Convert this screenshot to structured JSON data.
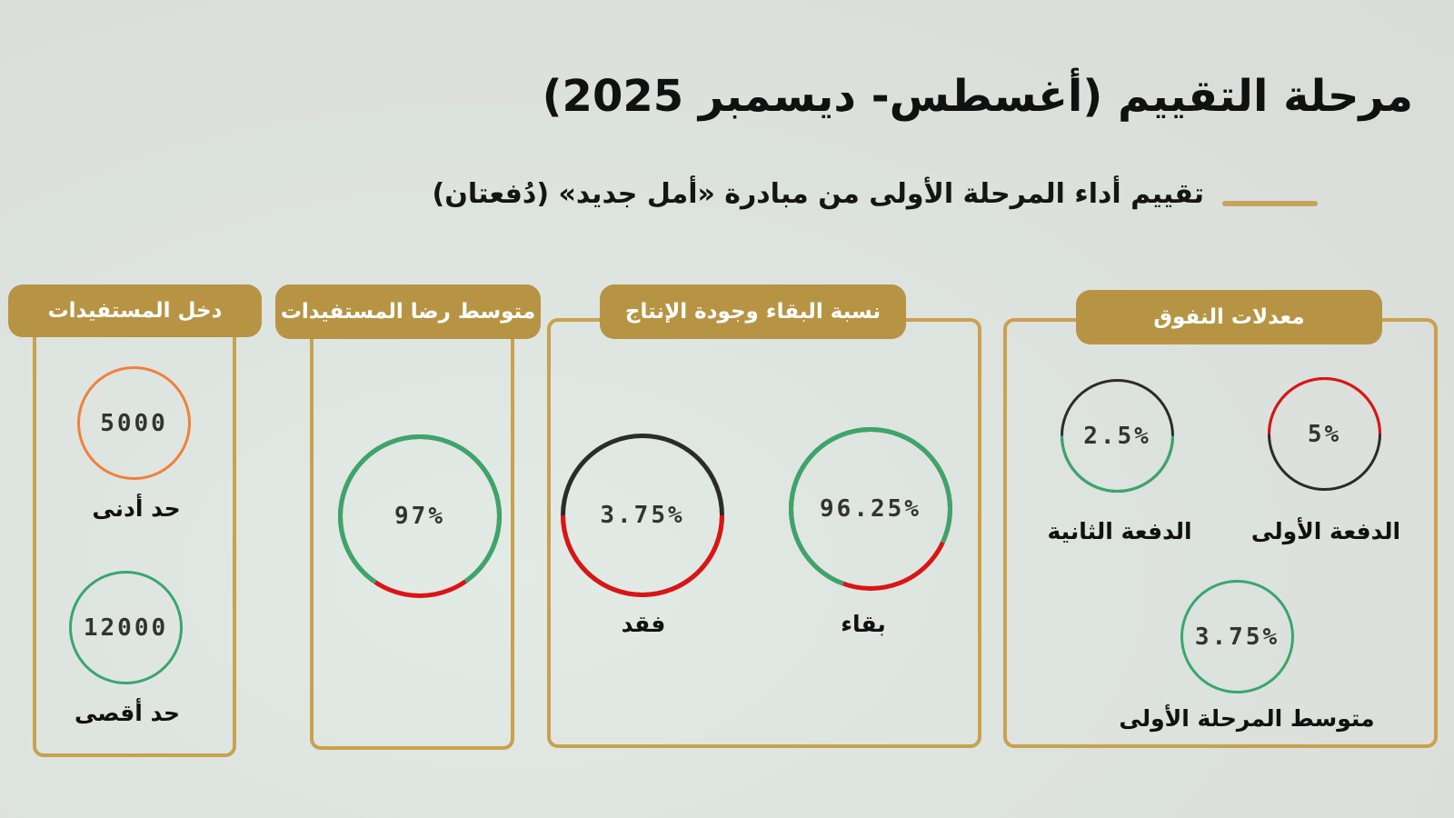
{
  "page": {
    "title": "مرحلة التقييم (أغسطس- ديسمبر 2025)",
    "subtitle": "تقييم أداء المرحلة الأولى من مبادرة «أمل جديد» (دُفعتان)"
  },
  "colors": {
    "gold": "#c9a14f",
    "tag": "#b79443",
    "green": "#3aa66c",
    "red": "#dd1414",
    "dark": "#2b2b2b",
    "orange": "#f0813a"
  },
  "panels": {
    "income": {
      "tag": "دخل المستفيدات",
      "min_value": "5000",
      "min_label": "حد أدنى",
      "max_value": "12000",
      "max_label": "حد أقصى"
    },
    "satisfaction": {
      "tag": "متوسط رضا المستفيدات",
      "value": "97%"
    },
    "retention": {
      "tag": "نسبة البقاء وجودة الإنتاج",
      "retention_value": "96.25%",
      "retention_label": "بقاء",
      "loss_value": "3.75%",
      "loss_label": "فقد"
    },
    "attrition": {
      "tag": "معدلات النفوق",
      "batch1_value": "5%",
      "batch1_label": "الدفعة الأولى",
      "batch2_value": "2.5%",
      "batch2_label": "الدفعة الثانية",
      "avg_value": "3.75%",
      "avg_label": "متوسط المرحلة الأولى"
    }
  }
}
